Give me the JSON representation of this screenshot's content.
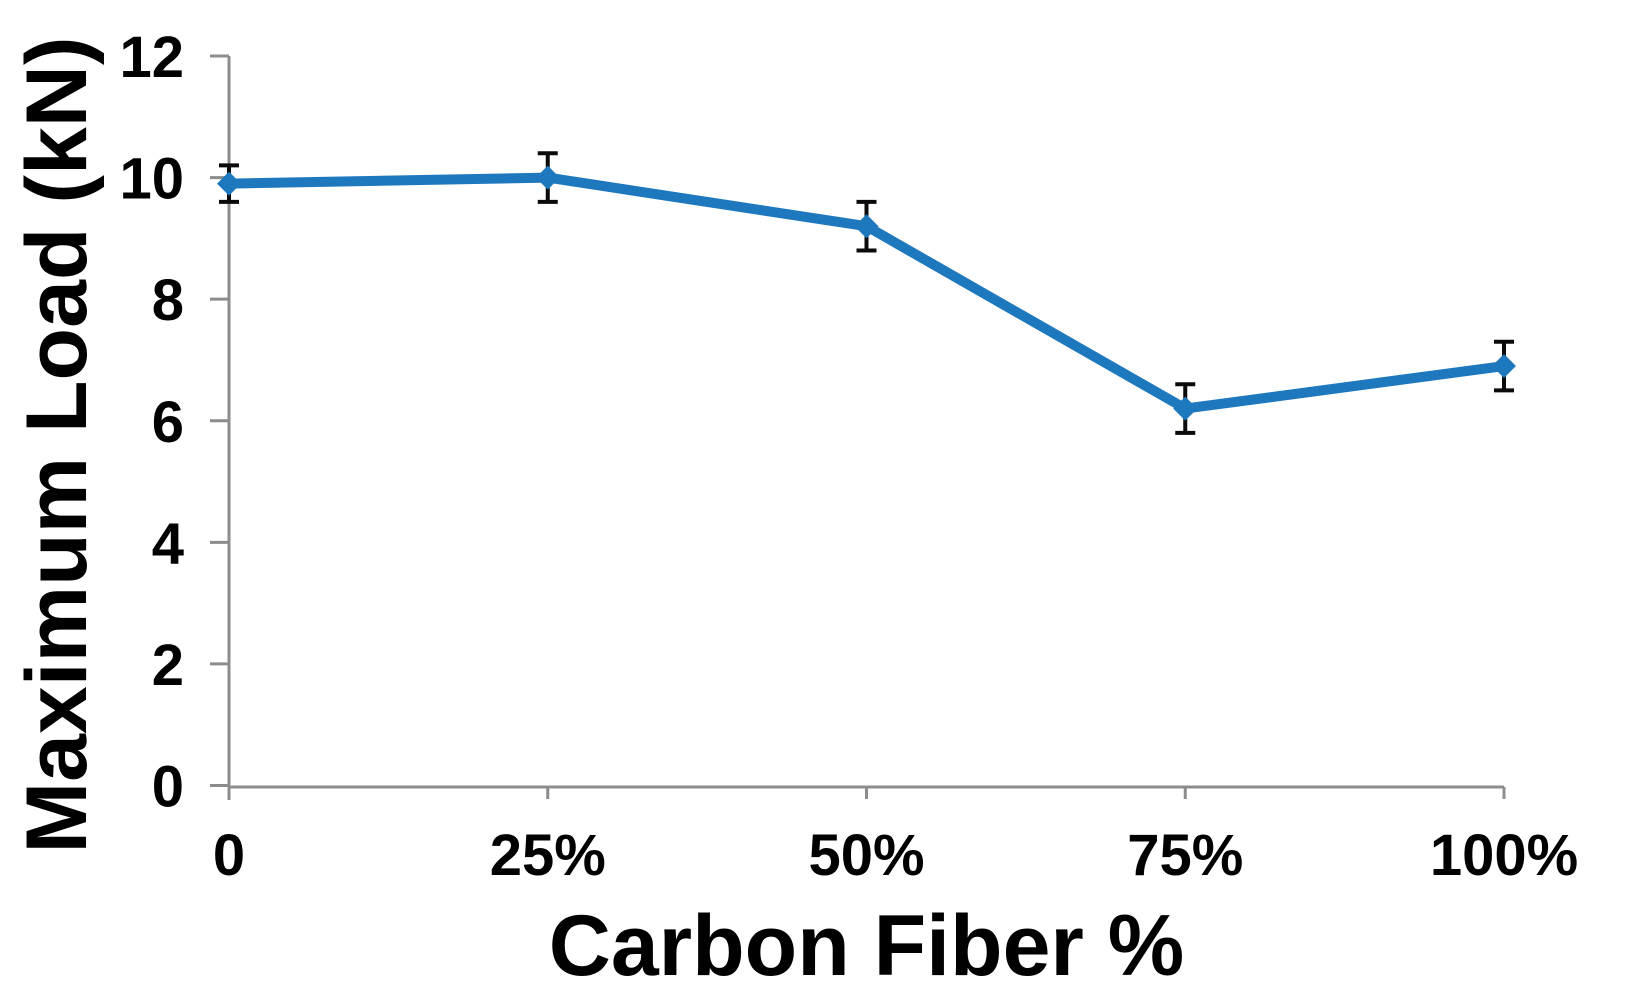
{
  "chart_data": {
    "type": "line",
    "title": "",
    "xlabel": "Carbon Fiber %",
    "ylabel": "Maximum Load (kN)",
    "categories": [
      "0",
      "25%",
      "50%",
      "75%",
      "100%"
    ],
    "series": [
      {
        "name": "Maximum Load",
        "values": [
          9.9,
          10.0,
          9.2,
          6.2,
          6.9
        ],
        "error_bars": [
          0.3,
          0.4,
          0.4,
          0.4,
          0.4
        ],
        "marker": "diamond"
      }
    ],
    "ylim": [
      0,
      12
    ],
    "y_ticks": [
      "0",
      "2",
      "4",
      "6",
      "8",
      "10",
      "12"
    ],
    "grid": false,
    "legend": false
  },
  "styles": {
    "series_color": "#1E78BE",
    "axis_color": "#8C8C8C",
    "error_bar_color": "#0A0A0A",
    "text_color": "#000000",
    "background": "#FFFFFF"
  }
}
